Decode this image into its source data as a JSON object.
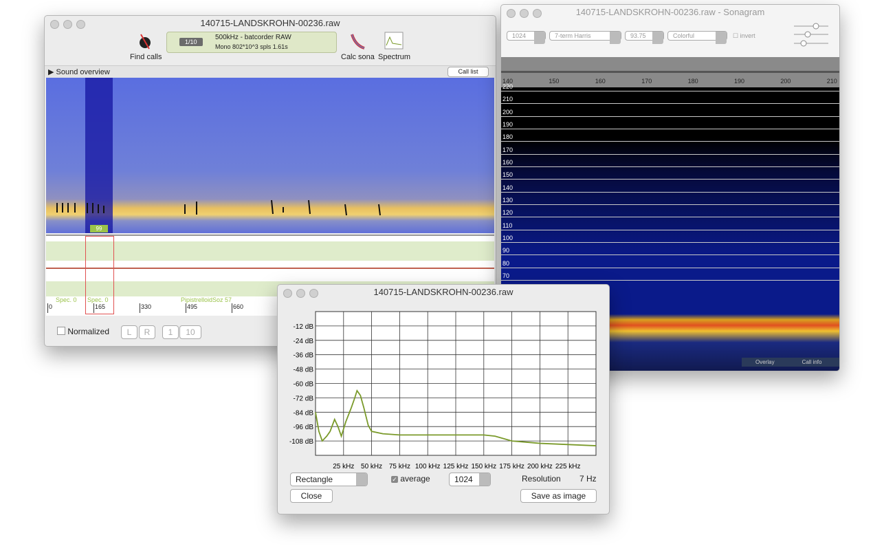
{
  "main_window": {
    "title": "140715-LANDSKROHN-00236.raw",
    "toolbar": {
      "find_calls": "Find calls",
      "page": "1/10",
      "file_info": "500kHz - batcorder RAW",
      "file_details": "Mono 802*10^3 spls 1.61s",
      "calc_sona": "Calc sona",
      "spectrum": "Spectrum"
    },
    "sound_overview": "Sound overview",
    "call_list": "Call list",
    "marker": "99",
    "overview_labels": [
      "Spec. 0",
      "Spec. 0",
      "PipistrelloidSoz 57"
    ],
    "time_axis": [
      0,
      165,
      330,
      495,
      660
    ],
    "normalized": "Normalized",
    "channels": [
      "L",
      "R"
    ],
    "zoom": [
      "1",
      "10"
    ]
  },
  "sonagram_window": {
    "title": "140715-LANDSKROHN-00236.raw - Sonagram",
    "fft": "1024",
    "window": "7-term Harris",
    "overlap": "93.75",
    "palette": "Colorful",
    "invert": "invert",
    "time_axis": [
      140,
      150,
      160,
      170,
      180,
      190,
      200,
      210
    ],
    "freq_axis": [
      220,
      210,
      200,
      190,
      180,
      170,
      160,
      150,
      140,
      130,
      120,
      110,
      100,
      90,
      80,
      70
    ],
    "tabs": [
      "Overlay",
      "Call info"
    ]
  },
  "spectrum_window": {
    "title": "140715-LANDSKROHN-00236.raw",
    "chart_data": {
      "type": "line",
      "x": [
        0,
        3,
        6,
        10,
        13,
        17,
        20,
        23,
        27,
        32,
        35,
        37,
        40,
        43,
        47,
        50,
        60,
        75,
        100,
        125,
        150,
        160,
        175,
        200,
        225,
        250
      ],
      "series": [
        {
          "color": "#7a9a2a",
          "values": [
            -84,
            -100,
            -108,
            -104,
            -100,
            -90,
            -96,
            -104,
            -92,
            -80,
            -72,
            -66,
            -70,
            -80,
            -95,
            -100,
            -102,
            -103,
            -103,
            -103,
            -103,
            -104,
            -108,
            -110,
            -111,
            -112
          ]
        }
      ],
      "xlim": [
        0,
        250
      ],
      "xticks": [
        {
          "value": 25,
          "label": "25 kHz"
        },
        {
          "value": 50,
          "label": "50 kHz"
        },
        {
          "value": 75,
          "label": "75 kHz"
        },
        {
          "value": 100,
          "label": "100 kHz"
        },
        {
          "value": 125,
          "label": "125 kHz"
        },
        {
          "value": 150,
          "label": "150 kHz"
        },
        {
          "value": 175,
          "label": "175 kHz"
        },
        {
          "value": 200,
          "label": "200 kHz"
        },
        {
          "value": 225,
          "label": "225 kHz"
        }
      ],
      "ylim": [
        -120,
        0
      ],
      "yticks": [
        {
          "value": -12,
          "label": "-12 dB"
        },
        {
          "value": -24,
          "label": "-24 dB"
        },
        {
          "value": -36,
          "label": "-36 dB"
        },
        {
          "value": -48,
          "label": "-48 dB"
        },
        {
          "value": -60,
          "label": "-60 dB"
        },
        {
          "value": -72,
          "label": "-72 dB"
        },
        {
          "value": -84,
          "label": "-84 dB"
        },
        {
          "value": -96,
          "label": "-96 dB"
        },
        {
          "value": -108,
          "label": "-108 dB"
        }
      ],
      "grid": true
    },
    "controls": {
      "window": "Rectangle",
      "average": "average",
      "fft": "1024",
      "resolution_label": "Resolution",
      "resolution": "7 Hz",
      "close": "Close",
      "save": "Save as image"
    }
  }
}
